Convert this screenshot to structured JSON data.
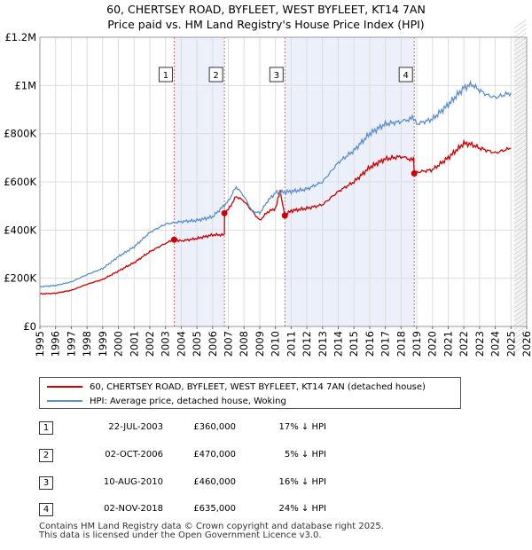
{
  "chart_data": {
    "type": "line",
    "title": "60, CHERTSEY ROAD, BYFLEET, WEST BYFLEET, KT14 7AN",
    "subtitle": "Price paid vs. HM Land Registry's House Price Index (HPI)",
    "xlabel": "",
    "ylabel": "",
    "xlim": [
      1995,
      2026
    ],
    "ylim": [
      0,
      1200000
    ],
    "x_ticks": [
      "1995",
      "1996",
      "1997",
      "1998",
      "1999",
      "2000",
      "2001",
      "2002",
      "2003",
      "2004",
      "2005",
      "2006",
      "2007",
      "2008",
      "2009",
      "2010",
      "2011",
      "2012",
      "2013",
      "2014",
      "2015",
      "2016",
      "2017",
      "2018",
      "2019",
      "2020",
      "2021",
      "2022",
      "2023",
      "2024",
      "2025",
      "2026"
    ],
    "y_ticks": [
      {
        "value": 0,
        "label": "£0"
      },
      {
        "value": 200000,
        "label": "£200K"
      },
      {
        "value": 400000,
        "label": "£400K"
      },
      {
        "value": 600000,
        "label": "£600K"
      },
      {
        "value": 800000,
        "label": "£800K"
      },
      {
        "value": 1000000,
        "label": "£1M"
      },
      {
        "value": 1200000,
        "label": "£1.2M"
      }
    ],
    "grid": true,
    "series": [
      {
        "name": "60, CHERTSEY ROAD, BYFLEET, WEST BYFLEET, KT14 7AN (detached house)",
        "color": "#cc0000",
        "points": [
          [
            1995,
            135000
          ],
          [
            1996,
            138000
          ],
          [
            1997,
            150000
          ],
          [
            1998,
            175000
          ],
          [
            1999,
            195000
          ],
          [
            2000,
            230000
          ],
          [
            2001,
            265000
          ],
          [
            2002,
            310000
          ],
          [
            2003,
            345000
          ],
          [
            2003.55,
            360000
          ],
          [
            2004,
            355000
          ],
          [
            2005,
            365000
          ],
          [
            2006,
            380000
          ],
          [
            2006.75,
            380000
          ],
          [
            2006.76,
            470000
          ],
          [
            2007,
            485000
          ],
          [
            2007.5,
            540000
          ],
          [
            2008,
            520000
          ],
          [
            2008.5,
            480000
          ],
          [
            2009,
            440000
          ],
          [
            2009.5,
            475000
          ],
          [
            2010,
            490000
          ],
          [
            2010.3,
            560000
          ],
          [
            2010.6,
            460000
          ],
          [
            2011,
            480000
          ],
          [
            2012,
            490000
          ],
          [
            2013,
            505000
          ],
          [
            2014,
            560000
          ],
          [
            2015,
            600000
          ],
          [
            2016,
            660000
          ],
          [
            2017,
            695000
          ],
          [
            2017.5,
            700000
          ],
          [
            2018,
            705000
          ],
          [
            2018.8,
            690000
          ],
          [
            2018.84,
            635000
          ],
          [
            2019,
            640000
          ],
          [
            2019.5,
            645000
          ],
          [
            2020,
            650000
          ],
          [
            2021,
            700000
          ],
          [
            2022,
            760000
          ],
          [
            2022.5,
            755000
          ],
          [
            2023,
            740000
          ],
          [
            2023.5,
            730000
          ],
          [
            2024,
            720000
          ],
          [
            2024.5,
            730000
          ],
          [
            2025,
            740000
          ]
        ]
      },
      {
        "name": "HPI: Average price, detached house, Woking",
        "color": "#5b8fd0",
        "points": [
          [
            1995,
            165000
          ],
          [
            1996,
            170000
          ],
          [
            1997,
            185000
          ],
          [
            1998,
            215000
          ],
          [
            1999,
            240000
          ],
          [
            2000,
            290000
          ],
          [
            2001,
            330000
          ],
          [
            2002,
            390000
          ],
          [
            2003,
            425000
          ],
          [
            2004,
            435000
          ],
          [
            2005,
            440000
          ],
          [
            2006,
            455000
          ],
          [
            2007,
            520000
          ],
          [
            2007.5,
            580000
          ],
          [
            2008,
            540000
          ],
          [
            2008.5,
            480000
          ],
          [
            2009,
            470000
          ],
          [
            2009.5,
            520000
          ],
          [
            2010,
            555000
          ],
          [
            2011,
            560000
          ],
          [
            2012,
            570000
          ],
          [
            2013,
            600000
          ],
          [
            2014,
            680000
          ],
          [
            2015,
            730000
          ],
          [
            2016,
            800000
          ],
          [
            2017,
            840000
          ],
          [
            2018,
            850000
          ],
          [
            2018.8,
            865000
          ],
          [
            2019,
            840000
          ],
          [
            2020,
            860000
          ],
          [
            2021,
            920000
          ],
          [
            2022,
            990000
          ],
          [
            2022.5,
            1005000
          ],
          [
            2023,
            980000
          ],
          [
            2023.5,
            960000
          ],
          [
            2024,
            950000
          ],
          [
            2024.5,
            960000
          ],
          [
            2025,
            970000
          ]
        ]
      }
    ],
    "sales": [
      {
        "label": "1",
        "date": "22-JUL-2003",
        "x": 2003.55,
        "price_value": 360000,
        "price": "£360,000",
        "hpi": "17% ↓ HPI"
      },
      {
        "label": "2",
        "date": "02-OCT-2006",
        "x": 2006.75,
        "price_value": 470000,
        "price": "£470,000",
        "hpi": "5% ↓ HPI"
      },
      {
        "label": "3",
        "date": "10-AUG-2010",
        "x": 2010.6,
        "price_value": 460000,
        "price": "£460,000",
        "hpi": "16% ↓ HPI"
      },
      {
        "label": "4",
        "date": "02-NOV-2018",
        "x": 2018.84,
        "price_value": 635000,
        "price": "£635,000",
        "hpi": "24% ↓ HPI"
      }
    ],
    "shaded_periods": [
      [
        2003.55,
        2006.75
      ],
      [
        2010.6,
        2018.84
      ]
    ],
    "forecast_start": 2025.2
  },
  "legend": {
    "property_label": "60, CHERTSEY ROAD, BYFLEET, WEST BYFLEET, KT14 7AN (detached house)",
    "hpi_label": "HPI: Average price, detached house, Woking"
  },
  "footer": {
    "line1": "Contains HM Land Registry data © Crown copyright and database right 2025.",
    "line2": "This data is licensed under the Open Government Licence v3.0."
  }
}
